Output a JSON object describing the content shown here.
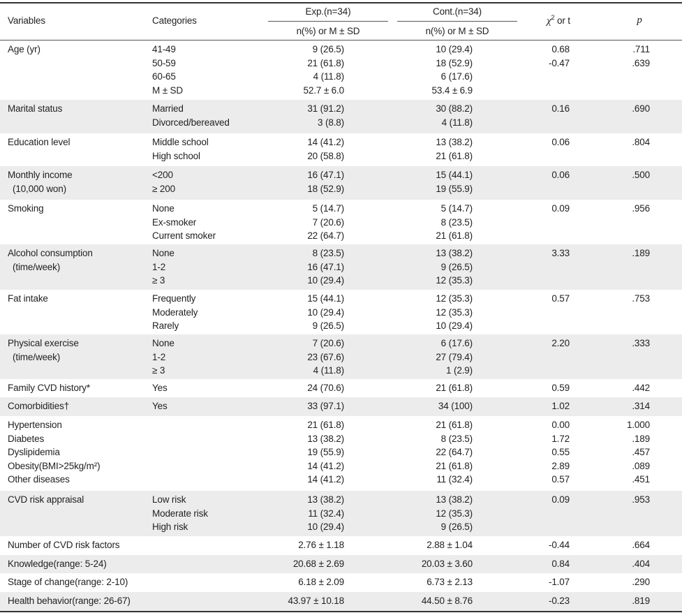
{
  "colors": {
    "band": "#ececec",
    "rule": "#333333",
    "text": "#222222"
  },
  "header": {
    "variables": "Variables",
    "categories": "Categories",
    "exp": "Exp.(n=34)",
    "cont": "Cont.(n=34)",
    "exp_sub": "n(%) or M ± SD",
    "cont_sub": "n(%) or M ± SD",
    "chi_symbol": "χ",
    "chi_sup": "2",
    "chi_rest": " or t",
    "p": "p"
  },
  "rows": [
    {
      "var": [
        "Age (yr)"
      ],
      "cat": [
        "41-49",
        "50-59",
        "60-65",
        "M ± SD"
      ],
      "exp": [
        "9 (26.5)",
        "21 (61.8)",
        "4 (11.8)",
        "52.7 ± 6.0"
      ],
      "cont": [
        "10 (29.4)",
        "18 (52.9)",
        "6 (17.6)",
        "53.4 ± 6.9"
      ],
      "chi": [
        "0.68",
        "-0.47"
      ],
      "p": [
        ".711",
        ".639"
      ]
    },
    {
      "var": [
        "Marital status"
      ],
      "cat": [
        "Married",
        "Divorced/bereaved"
      ],
      "exp": [
        "31 (91.2)",
        "3 (8.8)"
      ],
      "cont": [
        "30 (88.2)",
        "4 (11.8)"
      ],
      "chi": [
        "0.16"
      ],
      "p": [
        ".690"
      ]
    },
    {
      "var": [
        "Education level"
      ],
      "cat": [
        "Middle school",
        "High school"
      ],
      "exp": [
        "14 (41.2)",
        "20 (58.8)"
      ],
      "cont": [
        "13 (38.2)",
        "21 (61.8)"
      ],
      "chi": [
        "0.06"
      ],
      "p": [
        ".804"
      ]
    },
    {
      "var": [
        "Monthly income",
        "(10,000 won)"
      ],
      "cat": [
        "<200",
        "≥ 200"
      ],
      "exp": [
        "16 (47.1)",
        "18 (52.9)"
      ],
      "cont": [
        "15 (44.1)",
        "19 (55.9)"
      ],
      "chi": [
        "0.06"
      ],
      "p": [
        ".500"
      ]
    },
    {
      "var": [
        "Smoking"
      ],
      "cat": [
        "None",
        "Ex-smoker",
        "Current smoker"
      ],
      "exp": [
        "5 (14.7)",
        "7 (20.6)",
        "22 (64.7)"
      ],
      "cont": [
        "5 (14.7)",
        "8 (23.5)",
        "21 (61.8)"
      ],
      "chi": [
        "0.09"
      ],
      "p": [
        ".956"
      ]
    },
    {
      "var": [
        "Alcohol consumption",
        "(time/week)"
      ],
      "cat": [
        "None",
        "1-2",
        "≥ 3"
      ],
      "exp": [
        "8 (23.5)",
        "16 (47.1)",
        "10 (29.4)"
      ],
      "cont": [
        "13 (38.2)",
        "9 (26.5)",
        "12 (35.3)"
      ],
      "chi": [
        "3.33"
      ],
      "p": [
        ".189"
      ]
    },
    {
      "var": [
        "Fat intake"
      ],
      "cat": [
        "Frequently",
        "Moderately",
        "Rarely"
      ],
      "exp": [
        "15 (44.1)",
        "10 (29.4)",
        "9 (26.5)"
      ],
      "cont": [
        "12 (35.3)",
        "12 (35.3)",
        "10 (29.4)"
      ],
      "chi": [
        "0.57"
      ],
      "p": [
        ".753"
      ]
    },
    {
      "var": [
        "Physical exercise",
        "(time/week)"
      ],
      "cat": [
        "None",
        "1-2",
        "≥ 3"
      ],
      "exp": [
        "7 (20.6)",
        "23 (67.6)",
        "4 (11.8)"
      ],
      "cont": [
        "6 (17.6)",
        "27 (79.4)",
        "1 (2.9)"
      ],
      "chi": [
        "2.20"
      ],
      "p": [
        ".333"
      ]
    },
    {
      "var": [
        "Family CVD history*"
      ],
      "cat": [
        "Yes"
      ],
      "exp": [
        "24 (70.6)"
      ],
      "cont": [
        "21 (61.8)"
      ],
      "chi": [
        "0.59"
      ],
      "p": [
        ".442"
      ]
    },
    {
      "var": [
        "Comorbidities†"
      ],
      "cat": [
        "Yes"
      ],
      "exp": [
        "33 (97.1)"
      ],
      "cont": [
        "34 (100)"
      ],
      "chi": [
        "1.02"
      ],
      "p": [
        ".314"
      ]
    },
    {
      "var": [
        "Hypertension",
        "Diabetes",
        "Dyslipidemia",
        "Obesity(BMI>25kg/m²)",
        "Other diseases"
      ],
      "cat": [],
      "exp": [
        "21 (61.8)",
        "13 (38.2)",
        "19 (55.9)",
        "14 (41.2)",
        "14 (41.2)"
      ],
      "cont": [
        "21 (61.8)",
        "8 (23.5)",
        "22 (64.7)",
        "21 (61.8)",
        "11 (32.4)"
      ],
      "chi": [
        "0.00",
        "1.72",
        "0.55",
        "2.89",
        "0.57"
      ],
      "p": [
        "1.000",
        ".189",
        ".457",
        ".089",
        ".451"
      ]
    },
    {
      "var": [
        "CVD risk appraisal"
      ],
      "cat": [
        "Low risk",
        "Moderate risk",
        "High risk"
      ],
      "exp": [
        "13 (38.2)",
        "11 (32.4)",
        "10 (29.4)"
      ],
      "cont": [
        "13 (38.2)",
        "12 (35.3)",
        "9 (26.5)"
      ],
      "chi": [
        "0.09"
      ],
      "p": [
        ".953"
      ]
    },
    {
      "var": [
        "Number of CVD risk factors"
      ],
      "cat": [],
      "exp": [
        "2.76 ± 1.18"
      ],
      "cont": [
        "2.88 ± 1.04"
      ],
      "chi": [
        "-0.44"
      ],
      "p": [
        ".664"
      ]
    },
    {
      "var": [
        "Knowledge(range: 5-24)"
      ],
      "cat": [],
      "exp": [
        "20.68 ± 2.69"
      ],
      "cont": [
        "20.03 ± 3.60"
      ],
      "chi": [
        "0.84"
      ],
      "p": [
        ".404"
      ]
    },
    {
      "var": [
        "Stage of change(range: 2-10)"
      ],
      "cat": [],
      "exp": [
        "6.18 ± 2.09"
      ],
      "cont": [
        "6.73 ± 2.13"
      ],
      "chi": [
        "-1.07"
      ],
      "p": [
        ".290"
      ]
    },
    {
      "var": [
        "Health behavior(range: 26-67)"
      ],
      "cat": [],
      "exp": [
        "43.97 ± 10.18"
      ],
      "cont": [
        "44.50 ± 8.76"
      ],
      "chi": [
        "-0.23"
      ],
      "p": [
        ".819"
      ]
    }
  ]
}
